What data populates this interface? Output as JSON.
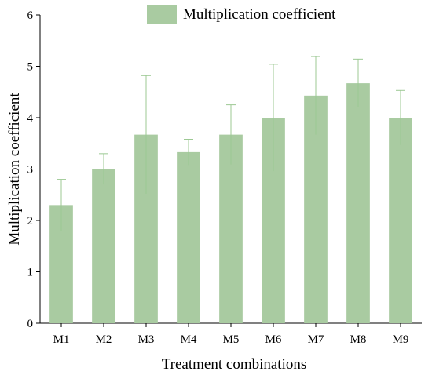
{
  "chart_data": {
    "type": "bar",
    "title": "",
    "xlabel": "Treatment combinations",
    "ylabel": "Multiplication coefficient",
    "categories": [
      "M1",
      "M2",
      "M3",
      "M4",
      "M5",
      "M6",
      "M7",
      "M8",
      "M9"
    ],
    "series": [
      {
        "name": "Multiplication coefficient",
        "values": [
          2.3,
          3.0,
          3.67,
          3.33,
          3.67,
          4.0,
          4.43,
          4.67,
          4.0
        ],
        "error": [
          0.5,
          0.3,
          1.15,
          0.25,
          0.58,
          1.04,
          0.76,
          0.47,
          0.53
        ]
      }
    ],
    "ylim": [
      0,
      6
    ],
    "yticks": [
      0,
      1,
      2,
      3,
      4,
      5,
      6
    ],
    "grid": false,
    "legend": "top-center",
    "colors": {
      "bar_fill": "#a9cba1",
      "error_bar": "#9cc893",
      "axis": "#000000"
    }
  }
}
